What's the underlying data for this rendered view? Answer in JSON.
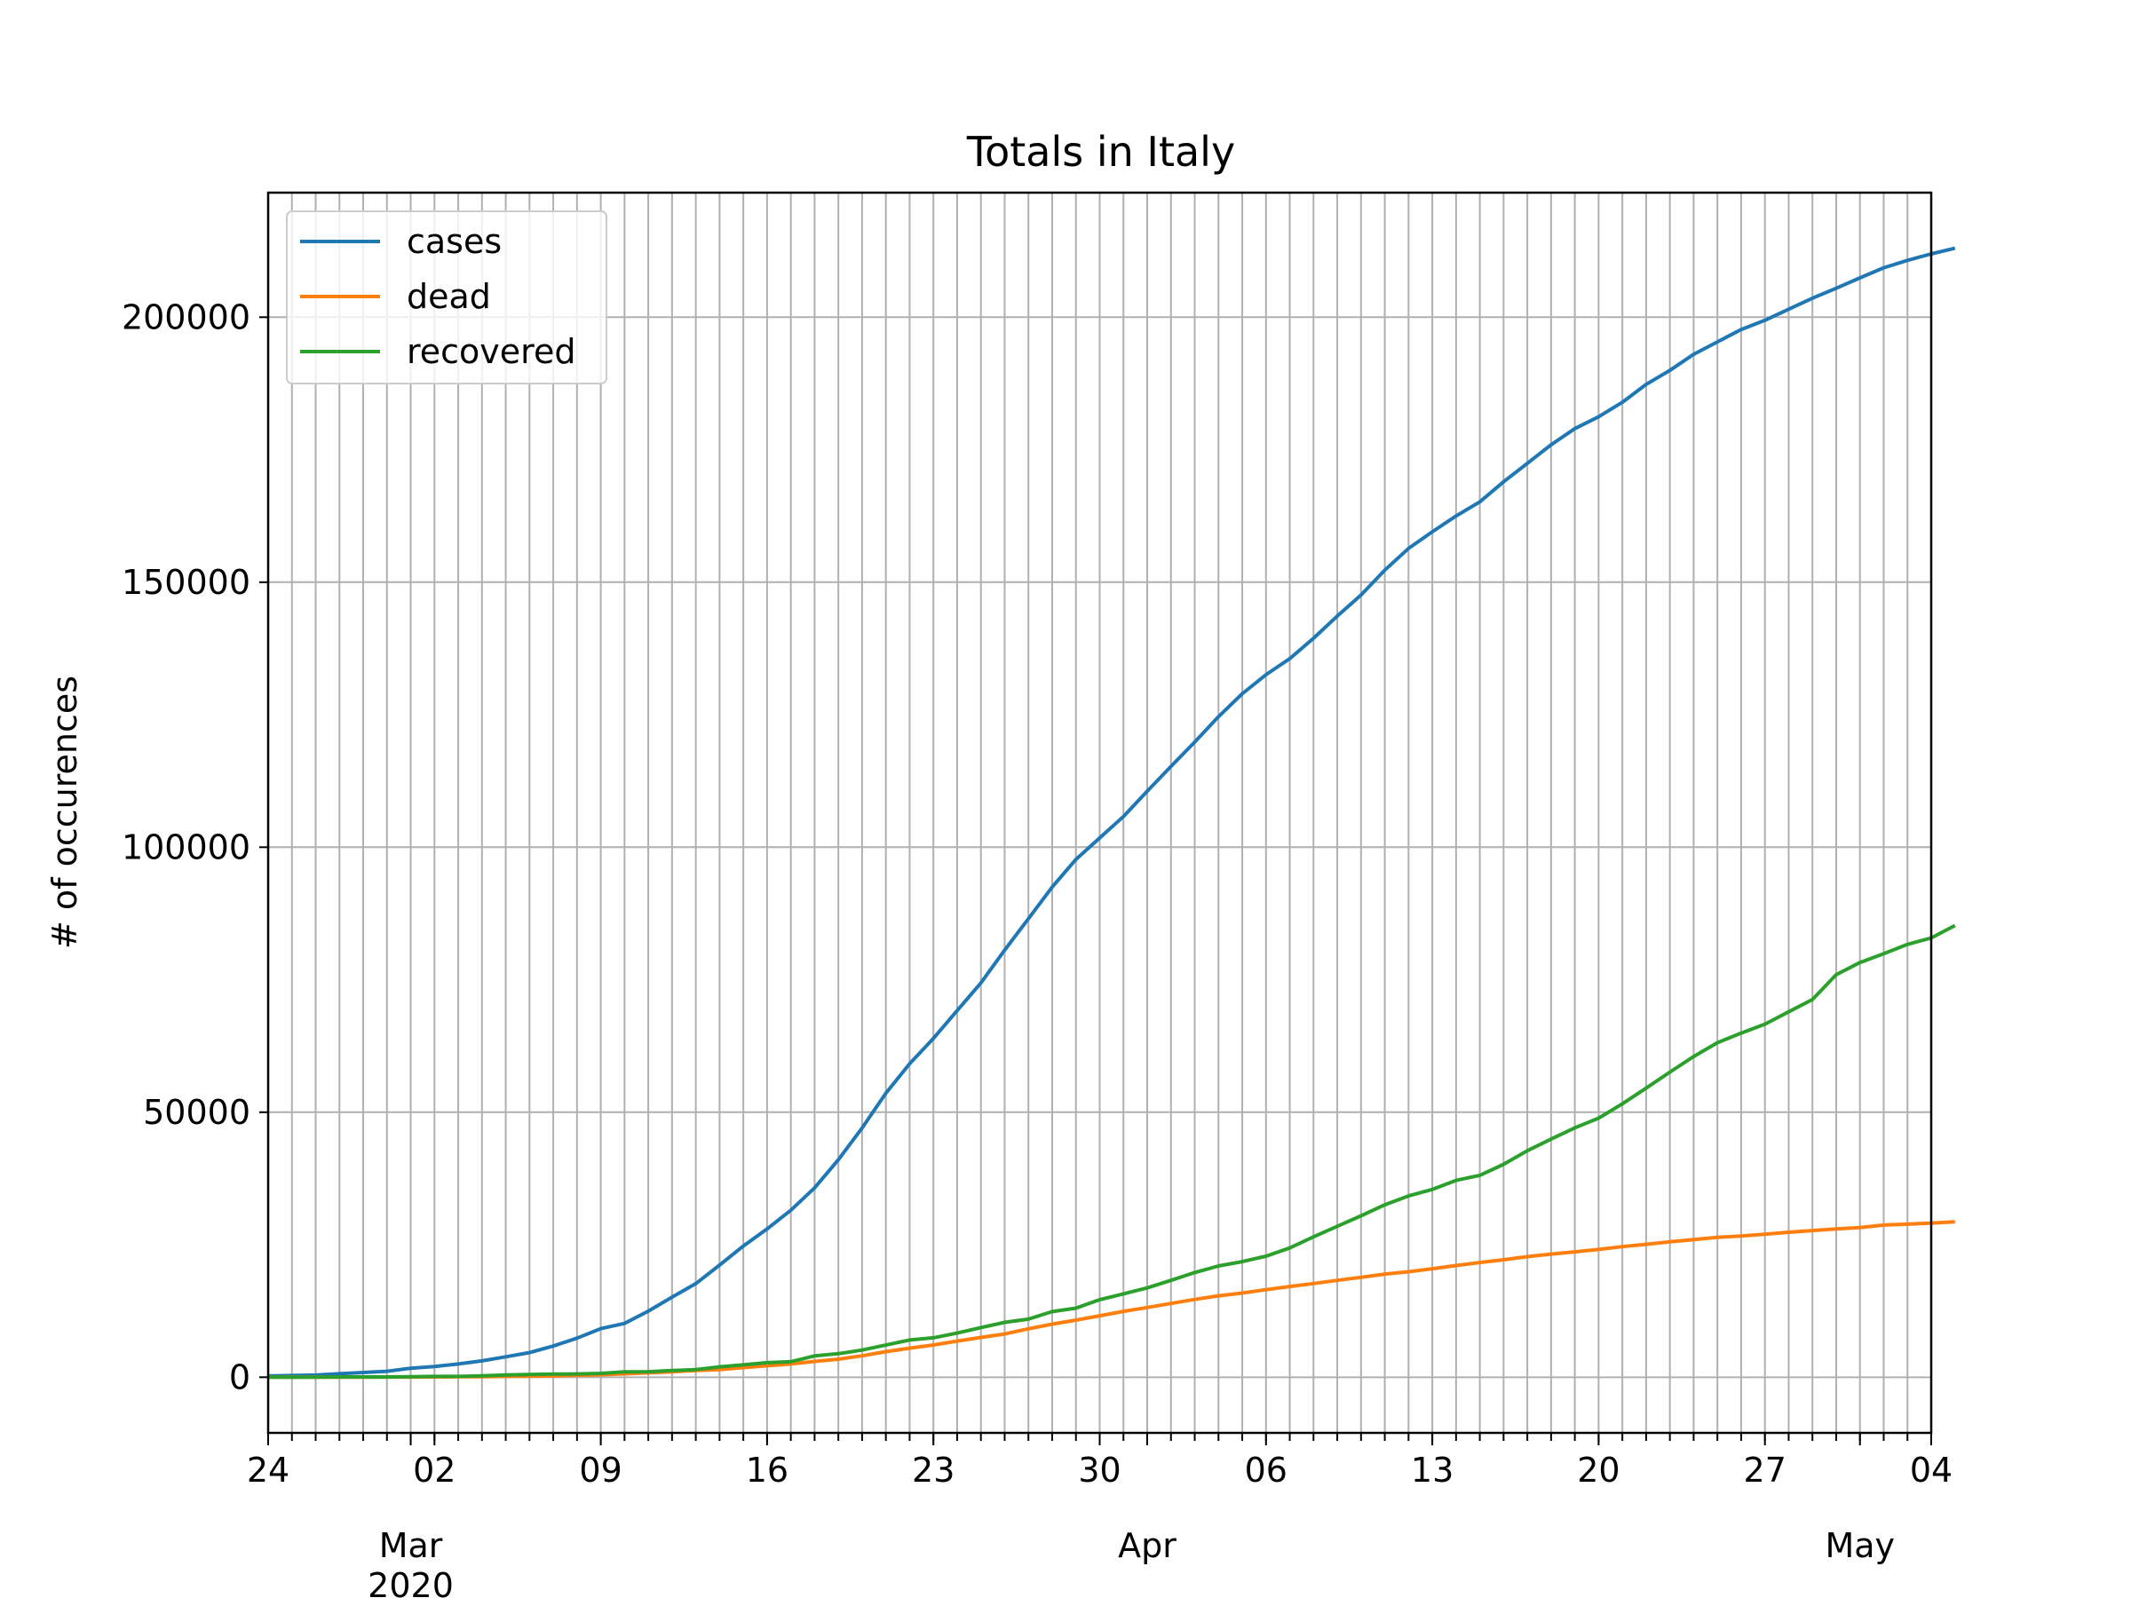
{
  "chart_data": {
    "type": "line",
    "title": "Totals in Italy",
    "xlabel": "",
    "ylabel": "# of occurences",
    "x_start": "2020-02-24",
    "x_end": "2020-05-04",
    "ylim": [
      -10500,
      223500
    ],
    "y_ticks": [
      0,
      50000,
      100000,
      150000,
      200000
    ],
    "x_major_ticks": [
      {
        "date": "2020-02-24",
        "label": "24"
      },
      {
        "date": "2020-03-02",
        "label": "02"
      },
      {
        "date": "2020-03-09",
        "label": "09"
      },
      {
        "date": "2020-03-16",
        "label": "16"
      },
      {
        "date": "2020-03-23",
        "label": "23"
      },
      {
        "date": "2020-03-30",
        "label": "30"
      },
      {
        "date": "2020-04-06",
        "label": "06"
      },
      {
        "date": "2020-04-13",
        "label": "13"
      },
      {
        "date": "2020-04-20",
        "label": "20"
      },
      {
        "date": "2020-04-27",
        "label": "27"
      },
      {
        "date": "2020-05-04",
        "label": "04"
      }
    ],
    "month_labels": [
      {
        "date": "2020-03-01",
        "label": "Mar",
        "sub": "2020"
      },
      {
        "date": "2020-04-01",
        "label": "Apr",
        "sub": ""
      },
      {
        "date": "2020-05-01",
        "label": "May",
        "sub": ""
      }
    ],
    "grid": true,
    "grid_interval": "daily",
    "legend_position": "top-left",
    "series": [
      {
        "name": "cases",
        "color": "#1f77b4",
        "values": [
          229,
          322,
          400,
          650,
          888,
          1128,
          1694,
          2036,
          2502,
          3089,
          3858,
          4636,
          5883,
          7375,
          9172,
          10149,
          12462,
          15113,
          17660,
          21157,
          24747,
          27980,
          31506,
          35713,
          41035,
          47021,
          53578,
          59138,
          63927,
          69176,
          74386,
          80589,
          86498,
          92472,
          97689,
          101739,
          105792,
          110574,
          115242,
          119827,
          124632,
          128948,
          132547,
          135586,
          139422,
          143626,
          147577,
          152271,
          156363,
          159516,
          162488,
          165155,
          168941,
          172434,
          175925,
          178972,
          181228,
          183957,
          187327,
          189973,
          192994,
          195351,
          197675,
          199414,
          201505,
          203591,
          205463,
          207428,
          209328,
          210717,
          211938,
          213013
        ]
      },
      {
        "name": "dead",
        "color": "#ff7f0e",
        "values": [
          7,
          10,
          12,
          17,
          21,
          29,
          34,
          52,
          79,
          107,
          148,
          197,
          233,
          366,
          463,
          631,
          827,
          1016,
          1266,
          1441,
          1809,
          2158,
          2503,
          2978,
          3405,
          4032,
          4825,
          5476,
          6077,
          6820,
          7503,
          8165,
          9134,
          10023,
          10779,
          11591,
          12428,
          13155,
          13915,
          14681,
          15362,
          15887,
          16523,
          17127,
          17669,
          18279,
          18849,
          19468,
          19899,
          20465,
          21067,
          21645,
          22170,
          22745,
          23227,
          23660,
          24114,
          24648,
          25085,
          25549,
          25969,
          26384,
          26644,
          26977,
          27359,
          27682,
          27967,
          28236,
          28710,
          28884,
          29079,
          29315
        ]
      },
      {
        "name": "recovered",
        "color": "#2ca02c",
        "values": [
          1,
          1,
          3,
          45,
          46,
          46,
          83,
          149,
          160,
          276,
          414,
          523,
          589,
          622,
          724,
          1004,
          1045,
          1258,
          1439,
          1966,
          2335,
          2749,
          2941,
          4025,
          4440,
          5129,
          6072,
          7024,
          7432,
          8326,
          9362,
          10361,
          10950,
          12384,
          13030,
          14620,
          15729,
          16847,
          18278,
          19758,
          20996,
          21815,
          22837,
          24392,
          26491,
          28470,
          30455,
          32534,
          34211,
          35435,
          37130,
          38092,
          40164,
          42727,
          44927,
          47055,
          48877,
          51600,
          54543,
          57576,
          60498,
          63120,
          64928,
          66624,
          68941,
          71252,
          75945,
          78249,
          79914,
          81654,
          82879,
          85231
        ]
      }
    ]
  }
}
